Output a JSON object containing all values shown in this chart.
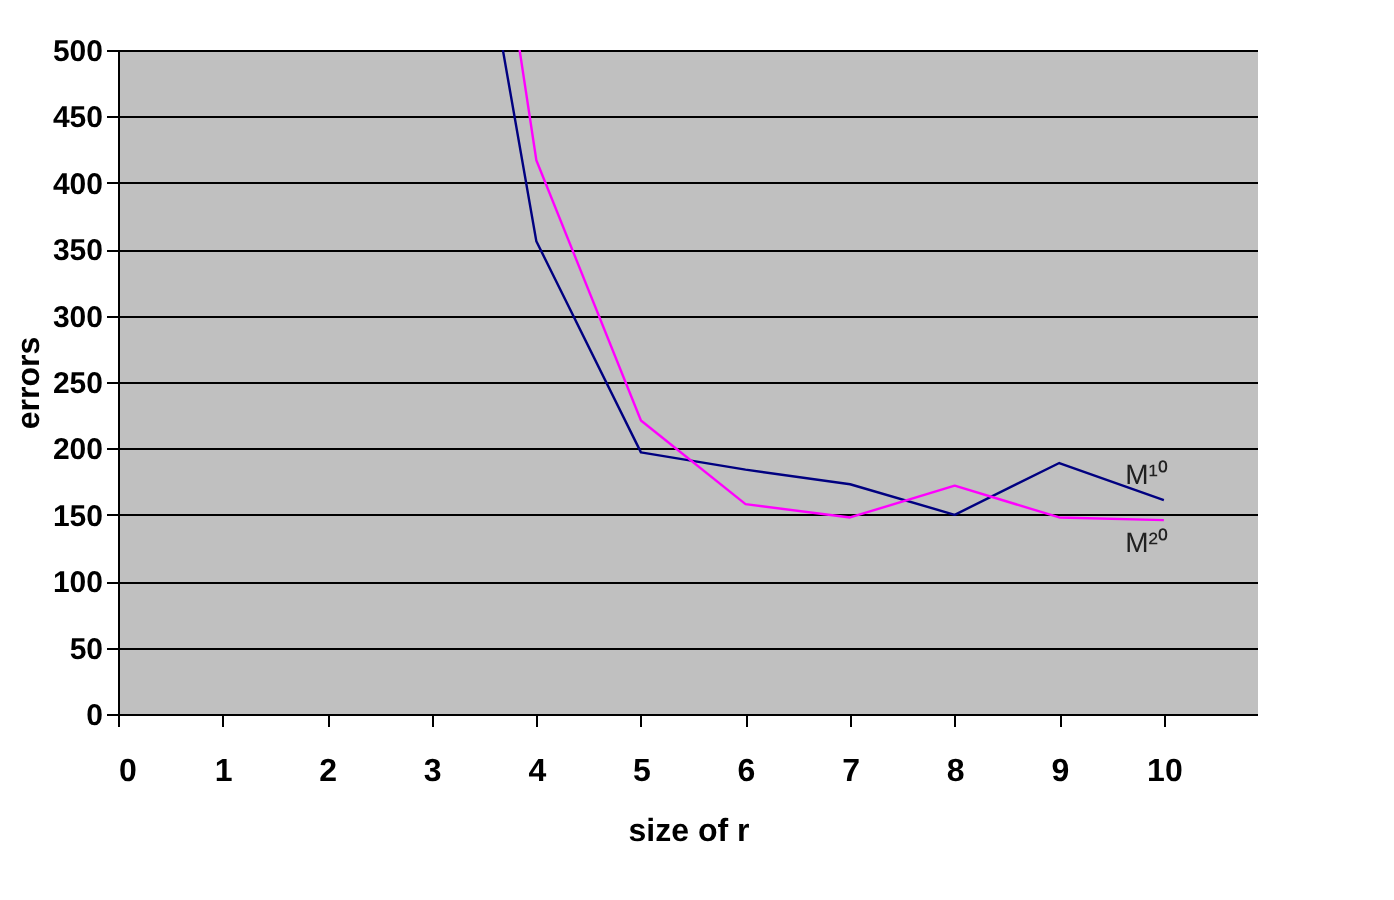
{
  "chart_data": {
    "type": "line",
    "xlabel": "size of r",
    "ylabel": "errors",
    "xlim": [
      0,
      10.9
    ],
    "xticks": [
      0,
      1,
      2,
      3,
      4,
      5,
      6,
      7,
      8,
      9,
      10
    ],
    "ylim": [
      0,
      500
    ],
    "yticks": [
      0,
      50,
      100,
      150,
      200,
      250,
      300,
      350,
      400,
      450,
      500
    ],
    "grid": "y",
    "legend": false,
    "marker": "none",
    "line_style": "solid",
    "series": [
      {
        "name": "M¹⁰",
        "color": "#000080",
        "x": [
          3.68,
          4,
          5,
          6,
          7,
          8,
          9,
          10
        ],
        "values": [
          500,
          356,
          197,
          184,
          173,
          150,
          189,
          161
        ]
      },
      {
        "name": "M²⁰",
        "color": "#ff00ff",
        "x": [
          3.84,
          4,
          5,
          6,
          7,
          8,
          9,
          10
        ],
        "values": [
          500,
          417,
          221,
          158,
          148,
          172,
          148,
          146
        ]
      }
    ]
  }
}
